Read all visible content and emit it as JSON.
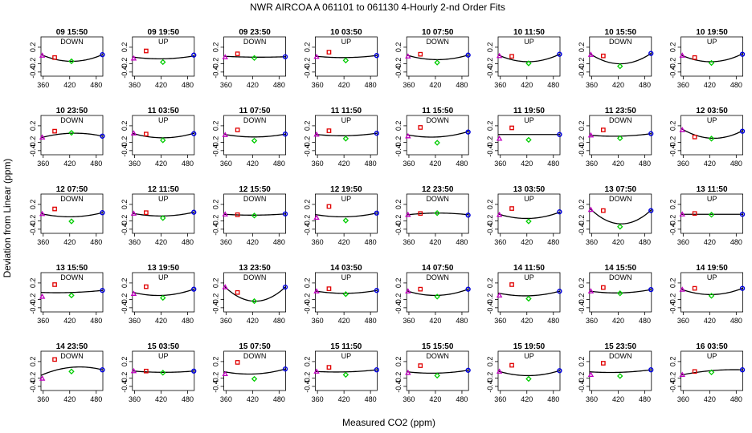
{
  "figure": {
    "title": "NWR   AIRCOA A    061101 to 061130   4-Hourly 2-nd Order Fits",
    "xlabel": "Measured CO2 (ppm)",
    "ylabel": "Deviation from Linear (ppm)"
  },
  "colors": {
    "curve": "#000000",
    "point_low": "#c000c0",
    "point_mid1": "#e00000",
    "point_mid2": "#00cc00",
    "point_high": "#0000dd"
  },
  "chart_data": {
    "type": "scatter",
    "layout_grid": "5 rows x 8 columns of small panels",
    "x_range": [
      355,
      495
    ],
    "y_range": [
      -0.5,
      0.45
    ],
    "x_ticks": [
      360,
      420,
      480
    ],
    "y_ticks": [
      -0.4,
      -0.2,
      0.2
    ],
    "point_x": [
      358,
      386,
      424,
      494
    ],
    "point_markers": [
      "triangle",
      "square",
      "diamond",
      "circle"
    ],
    "panels": [
      {
        "title": "09 15:50",
        "mode": "DOWN",
        "points": [
          0.0,
          -0.05,
          -0.14,
          0.02
        ],
        "curve": [
          0.01,
          -0.14,
          0.02
        ]
      },
      {
        "title": "09 19:50",
        "mode": "UP",
        "points": [
          -0.07,
          0.11,
          -0.16,
          0.01
        ],
        "curve": [
          -0.04,
          -0.08,
          -0.01
        ]
      },
      {
        "title": "09 23:50",
        "mode": "DOWN",
        "points": [
          -0.04,
          0.04,
          -0.06,
          -0.03
        ],
        "curve": [
          -0.02,
          -0.04,
          -0.03
        ]
      },
      {
        "title": "10 03:50",
        "mode": "UP",
        "points": [
          -0.03,
          0.08,
          -0.12,
          0.0
        ],
        "curve": [
          -0.02,
          -0.05,
          0.0
        ]
      },
      {
        "title": "10 07:50",
        "mode": "DOWN",
        "points": [
          -0.02,
          0.03,
          -0.17,
          0.01
        ],
        "curve": [
          0.0,
          -0.1,
          0.01
        ]
      },
      {
        "title": "10 11:50",
        "mode": "UP",
        "points": [
          -0.01,
          -0.02,
          -0.19,
          0.03
        ],
        "curve": [
          0.0,
          -0.15,
          0.03
        ]
      },
      {
        "title": "10 15:50",
        "mode": "DOWN",
        "points": [
          0.02,
          -0.01,
          -0.26,
          0.05
        ],
        "curve": [
          0.03,
          -0.2,
          0.05
        ]
      },
      {
        "title": "10 19:50",
        "mode": "UP",
        "points": [
          0.0,
          -0.05,
          -0.18,
          0.03
        ],
        "curve": [
          0.0,
          -0.15,
          0.04
        ]
      },
      {
        "title": "10 23:50",
        "mode": "DOWN",
        "points": [
          -0.08,
          0.07,
          0.03,
          -0.05
        ],
        "curve": [
          -0.08,
          0.02,
          -0.05
        ]
      },
      {
        "title": "11 03:50",
        "mode": "UP",
        "points": [
          0.02,
          0.0,
          -0.15,
          0.01
        ],
        "curve": [
          0.01,
          -0.09,
          0.02
        ]
      },
      {
        "title": "11 07:50",
        "mode": "DOWN",
        "points": [
          -0.02,
          0.1,
          -0.16,
          0.0
        ],
        "curve": [
          -0.01,
          -0.07,
          0.0
        ]
      },
      {
        "title": "11 11:50",
        "mode": "UP",
        "points": [
          -0.01,
          0.08,
          -0.11,
          0.02
        ],
        "curve": [
          -0.01,
          -0.04,
          0.02
        ]
      },
      {
        "title": "11 15:50",
        "mode": "DOWN",
        "points": [
          -0.05,
          0.16,
          -0.21,
          0.05
        ],
        "curve": [
          -0.02,
          -0.07,
          0.06
        ]
      },
      {
        "title": "11 19:50",
        "mode": "UP",
        "points": [
          -0.11,
          0.15,
          -0.14,
          -0.01
        ],
        "curve": [
          -0.01,
          -0.01,
          -0.01
        ]
      },
      {
        "title": "11 23:50",
        "mode": "DOWN",
        "points": [
          -0.03,
          0.1,
          -0.1,
          0.01
        ],
        "curve": [
          -0.03,
          -0.05,
          0.01
        ]
      },
      {
        "title": "12 03:50",
        "mode": "UP",
        "points": [
          0.1,
          -0.07,
          -0.11,
          0.07
        ],
        "curve": [
          0.12,
          -0.1,
          0.08
        ]
      },
      {
        "title": "12 07:50",
        "mode": "DOWN",
        "points": [
          -0.03,
          0.09,
          -0.21,
          0.0
        ],
        "curve": [
          -0.03,
          -0.1,
          0.0
        ]
      },
      {
        "title": "12 11:50",
        "mode": "UP",
        "points": [
          -0.02,
          0.0,
          -0.13,
          0.01
        ],
        "curve": [
          -0.02,
          -0.08,
          0.01
        ]
      },
      {
        "title": "12 15:50",
        "mode": "DOWN",
        "points": [
          -0.04,
          -0.05,
          -0.07,
          -0.03
        ],
        "curve": [
          -0.04,
          -0.06,
          -0.03
        ]
      },
      {
        "title": "12 19:50",
        "mode": "UP",
        "points": [
          -0.12,
          0.15,
          -0.19,
          -0.01
        ],
        "curve": [
          -0.05,
          -0.1,
          -0.01
        ]
      },
      {
        "title": "12 23:50",
        "mode": "DOWN",
        "points": [
          -0.05,
          -0.02,
          -0.01,
          -0.06
        ],
        "curve": [
          -0.05,
          -0.01,
          -0.05
        ]
      },
      {
        "title": "13 03:50",
        "mode": "UP",
        "points": [
          -0.05,
          0.1,
          -0.21,
          0.02
        ],
        "curve": [
          -0.04,
          -0.14,
          0.01
        ]
      },
      {
        "title": "13 07:50",
        "mode": "DOWN",
        "points": [
          0.07,
          0.05,
          -0.34,
          0.05
        ],
        "curve": [
          0.08,
          -0.27,
          0.06
        ]
      },
      {
        "title": "13 11:50",
        "mode": "UP",
        "points": [
          -0.04,
          -0.02,
          -0.05,
          -0.04
        ],
        "curve": [
          -0.04,
          -0.04,
          -0.04
        ]
      },
      {
        "title": "13 15:50",
        "mode": "DOWN",
        "points": [
          -0.13,
          0.16,
          -0.1,
          0.02
        ],
        "curve": [
          -0.03,
          -0.03,
          0.02
        ]
      },
      {
        "title": "13 19:50",
        "mode": "UP",
        "points": [
          -0.06,
          0.11,
          -0.16,
          0.05
        ],
        "curve": [
          -0.03,
          -0.1,
          0.05
        ]
      },
      {
        "title": "13 23:50",
        "mode": "DOWN",
        "points": [
          0.1,
          -0.03,
          -0.24,
          0.1
        ],
        "curve": [
          0.1,
          -0.24,
          0.1
        ]
      },
      {
        "title": "14 03:50",
        "mode": "UP",
        "points": [
          0.0,
          0.06,
          -0.07,
          0.02
        ],
        "curve": [
          0.0,
          -0.05,
          0.02
        ]
      },
      {
        "title": "14 07:50",
        "mode": "DOWN",
        "points": [
          0.0,
          0.05,
          -0.13,
          0.05
        ],
        "curve": [
          0.0,
          -0.1,
          0.05
        ]
      },
      {
        "title": "14 11:50",
        "mode": "UP",
        "points": [
          -0.1,
          0.16,
          -0.18,
          0.0
        ],
        "curve": [
          -0.05,
          -0.11,
          0.0
        ]
      },
      {
        "title": "14 15:50",
        "mode": "DOWN",
        "points": [
          0.0,
          0.09,
          -0.05,
          0.04
        ],
        "curve": [
          0.0,
          -0.04,
          0.04
        ]
      },
      {
        "title": "14 19:50",
        "mode": "UP",
        "points": [
          0.04,
          0.07,
          -0.11,
          0.07
        ],
        "curve": [
          0.04,
          -0.08,
          0.07
        ]
      },
      {
        "title": "14 23:50",
        "mode": "DOWN",
        "points": [
          -0.21,
          0.25,
          -0.04,
          0.0
        ],
        "curve": [
          -0.12,
          0.06,
          0.0
        ]
      },
      {
        "title": "15 03:50",
        "mode": "UP",
        "points": [
          -0.03,
          -0.03,
          -0.07,
          -0.03
        ],
        "curve": [
          -0.03,
          -0.06,
          -0.03
        ]
      },
      {
        "title": "15 07:50",
        "mode": "DOWN",
        "points": [
          -0.1,
          0.18,
          -0.22,
          0.02
        ],
        "curve": [
          -0.05,
          -0.1,
          0.02
        ]
      },
      {
        "title": "15 11:50",
        "mode": "UP",
        "points": [
          -0.04,
          0.06,
          -0.12,
          0.0
        ],
        "curve": [
          -0.04,
          -0.05,
          0.0
        ]
      },
      {
        "title": "15 15:50",
        "mode": "DOWN",
        "points": [
          -0.07,
          0.1,
          -0.14,
          -0.01
        ],
        "curve": [
          -0.05,
          -0.08,
          -0.01
        ]
      },
      {
        "title": "15 19:50",
        "mode": "UP",
        "points": [
          -0.04,
          0.11,
          -0.22,
          -0.02
        ],
        "curve": [
          -0.04,
          -0.14,
          -0.02
        ]
      },
      {
        "title": "15 23:50",
        "mode": "DOWN",
        "points": [
          -0.12,
          0.16,
          -0.15,
          0.0
        ],
        "curve": [
          -0.05,
          -0.06,
          0.0
        ]
      },
      {
        "title": "16 03:50",
        "mode": "UP",
        "points": [
          -0.12,
          -0.04,
          -0.06,
          0.0
        ],
        "curve": [
          -0.12,
          -0.02,
          0.0
        ]
      }
    ]
  }
}
